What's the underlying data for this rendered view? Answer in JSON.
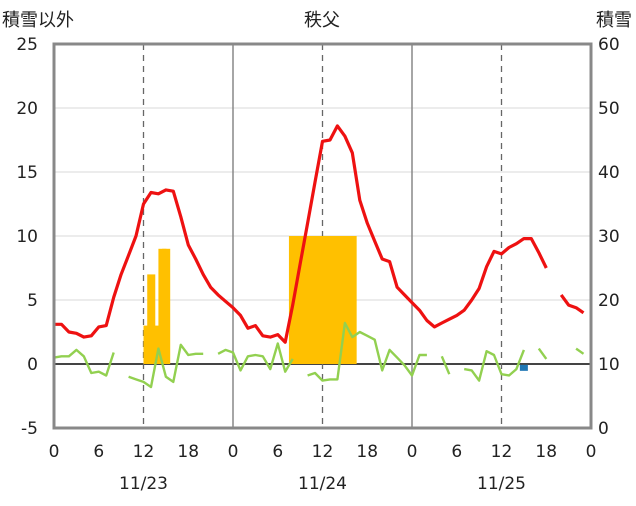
{
  "chart_data": {
    "type": "line",
    "title": "秩父",
    "left_axis_label": "積雪以外",
    "right_axis_label": "積雪",
    "ylim_left": [
      -5,
      25
    ],
    "left_ticks": [
      "25",
      "20",
      "15",
      "10",
      "5",
      "0",
      "-5"
    ],
    "ylim_right": [
      0,
      60
    ],
    "right_ticks": [
      "60",
      "50",
      "40",
      "30",
      "20",
      "10",
      "0"
    ],
    "x_range_hours": [
      0,
      72
    ],
    "x_tick_labels": [
      "0",
      "6",
      "12",
      "18",
      "0",
      "6",
      "12",
      "18",
      "0",
      "6",
      "12",
      "18",
      "0"
    ],
    "date_labels": [
      "11/23",
      "11/24",
      "11/25"
    ],
    "grid": "vertical dashed at 12:00, solid at 0:00",
    "bars": {
      "name": "precip",
      "color": "#FFC000",
      "axis": "left",
      "data": [
        {
          "hour": 12.5,
          "value": 3.0
        },
        {
          "hour": 13.0,
          "value": 7.0
        },
        {
          "hour": 13.5,
          "value": 3.0
        },
        {
          "hour": 14.5,
          "value": 9.0
        },
        {
          "hour": 15.0,
          "value": 9.0
        },
        {
          "hour": 8.0,
          "day_offset": 24,
          "value": 10.0
        },
        {
          "hour": 9.0,
          "day_offset": 24,
          "value": 10.0
        },
        {
          "hour": 10.0,
          "day_offset": 24,
          "value": 10.0
        },
        {
          "hour": 11.0,
          "day_offset": 24,
          "value": 10.0
        },
        {
          "hour": 12.0,
          "day_offset": 24,
          "value": 10.0
        },
        {
          "hour": 13.0,
          "day_offset": 24,
          "value": 10.0
        },
        {
          "hour": 14.0,
          "day_offset": 24,
          "value": 10.0
        },
        {
          "hour": 15.0,
          "day_offset": 24,
          "value": 10.0
        },
        {
          "hour": 16.0,
          "day_offset": 24,
          "value": 10.0
        }
      ]
    },
    "series": [
      {
        "name": "temperature",
        "color": "#EE1111",
        "axis": "left",
        "segments": [
          [
            [
              0,
              3.1
            ],
            [
              1,
              3.1
            ],
            [
              2,
              2.5
            ],
            [
              3,
              2.4
            ],
            [
              4,
              2.1
            ],
            [
              5,
              2.2
            ],
            [
              6,
              2.9
            ],
            [
              7,
              3.0
            ],
            [
              8,
              5.2
            ],
            [
              9,
              7.0
            ],
            [
              10,
              8.5
            ],
            [
              11,
              10.0
            ],
            [
              12,
              12.5
            ],
            [
              13,
              13.4
            ],
            [
              14,
              13.3
            ],
            [
              15,
              13.6
            ],
            [
              16,
              13.5
            ],
            [
              17,
              11.5
            ],
            [
              18,
              9.3
            ],
            [
              19,
              8.2
            ],
            [
              20,
              7.0
            ],
            [
              21,
              6.0
            ],
            [
              22,
              5.4
            ],
            [
              23,
              4.9
            ],
            [
              24,
              4.4
            ],
            [
              25,
              3.8
            ],
            [
              26,
              2.8
            ],
            [
              27,
              3.0
            ],
            [
              28,
              2.2
            ],
            [
              29,
              2.1
            ],
            [
              30,
              2.3
            ],
            [
              31,
              1.7
            ],
            [
              32,
              4.6
            ],
            [
              33,
              7.8
            ],
            [
              34,
              11.0
            ],
            [
              35,
              14.2
            ],
            [
              36,
              17.4
            ],
            [
              37,
              17.5
            ],
            [
              38,
              18.6
            ],
            [
              39,
              17.8
            ],
            [
              40,
              16.5
            ],
            [
              41,
              12.8
            ],
            [
              42,
              11.0
            ],
            [
              43,
              9.6
            ],
            [
              44,
              8.2
            ],
            [
              45,
              8.0
            ],
            [
              46,
              6.0
            ],
            [
              47,
              5.4
            ],
            [
              48,
              4.8
            ],
            [
              49,
              4.2
            ],
            [
              50,
              3.4
            ],
            [
              51,
              2.9
            ],
            [
              52,
              3.2
            ],
            [
              53,
              3.5
            ],
            [
              54,
              3.8
            ],
            [
              55,
              4.2
            ],
            [
              56,
              5.0
            ],
            [
              57,
              5.9
            ],
            [
              58,
              7.6
            ],
            [
              59,
              8.8
            ],
            [
              60,
              8.6
            ],
            [
              61,
              9.1
            ],
            [
              62,
              9.4
            ],
            [
              63,
              9.8
            ],
            [
              64,
              9.8
            ],
            [
              65,
              8.7
            ],
            [
              66,
              7.5
            ]
          ],
          [
            [
              68,
              5.4
            ],
            [
              69,
              4.6
            ],
            [
              70,
              4.4
            ],
            [
              71,
              4.0
            ]
          ]
        ]
      },
      {
        "name": "wind",
        "color": "#92D050",
        "axis": "left",
        "segments": [
          [
            [
              0,
              0.5
            ],
            [
              1,
              0.6
            ],
            [
              2,
              0.6
            ],
            [
              3,
              1.1
            ],
            [
              4,
              0.6
            ],
            [
              5,
              -0.7
            ],
            [
              6,
              -0.6
            ],
            [
              7,
              -0.9
            ],
            [
              8,
              0.9
            ]
          ],
          [
            [
              10,
              -1.0
            ],
            [
              11,
              -1.2
            ],
            [
              12,
              -1.4
            ],
            [
              13,
              -1.8
            ],
            [
              14,
              1.2
            ],
            [
              15,
              -1.0
            ],
            [
              16,
              -1.4
            ],
            [
              17,
              1.5
            ],
            [
              18,
              0.7
            ],
            [
              19,
              0.8
            ],
            [
              20,
              0.8
            ]
          ],
          [
            [
              22,
              0.8
            ],
            [
              23,
              1.1
            ],
            [
              24,
              0.9
            ],
            [
              25,
              -0.5
            ],
            [
              26,
              0.6
            ],
            [
              27,
              0.7
            ],
            [
              28,
              0.6
            ],
            [
              29,
              -0.4
            ],
            [
              30,
              1.6
            ],
            [
              31,
              -0.6
            ],
            [
              32,
              0.4
            ]
          ],
          [
            [
              34,
              -0.9
            ],
            [
              35,
              -0.7
            ],
            [
              36,
              -1.3
            ],
            [
              37,
              -1.2
            ],
            [
              38,
              -1.2
            ],
            [
              39,
              3.2
            ],
            [
              40,
              2.1
            ],
            [
              41,
              2.5
            ],
            [
              42,
              2.2
            ],
            [
              43,
              1.9
            ],
            [
              44,
              -0.5
            ],
            [
              45,
              1.1
            ],
            [
              46,
              0.5
            ],
            [
              47,
              -0.1
            ],
            [
              48,
              -0.9
            ],
            [
              49,
              0.7
            ],
            [
              50,
              0.7
            ]
          ],
          [
            [
              52,
              0.6
            ],
            [
              53,
              -0.8
            ]
          ],
          [
            [
              55,
              -0.4
            ],
            [
              56,
              -0.5
            ],
            [
              57,
              -1.3
            ],
            [
              58,
              1.0
            ],
            [
              59,
              0.7
            ],
            [
              60,
              -0.8
            ],
            [
              61,
              -0.9
            ],
            [
              62,
              -0.4
            ],
            [
              63,
              1.1
            ]
          ],
          [
            [
              65,
              1.2
            ],
            [
              66,
              0.4
            ]
          ],
          [
            [
              70,
              1.2
            ],
            [
              71,
              0.8
            ]
          ]
        ]
      }
    ],
    "markers": [
      {
        "name": "precip-type",
        "color": "#1F77B4",
        "hour": 63,
        "value": -0.3
      }
    ]
  }
}
